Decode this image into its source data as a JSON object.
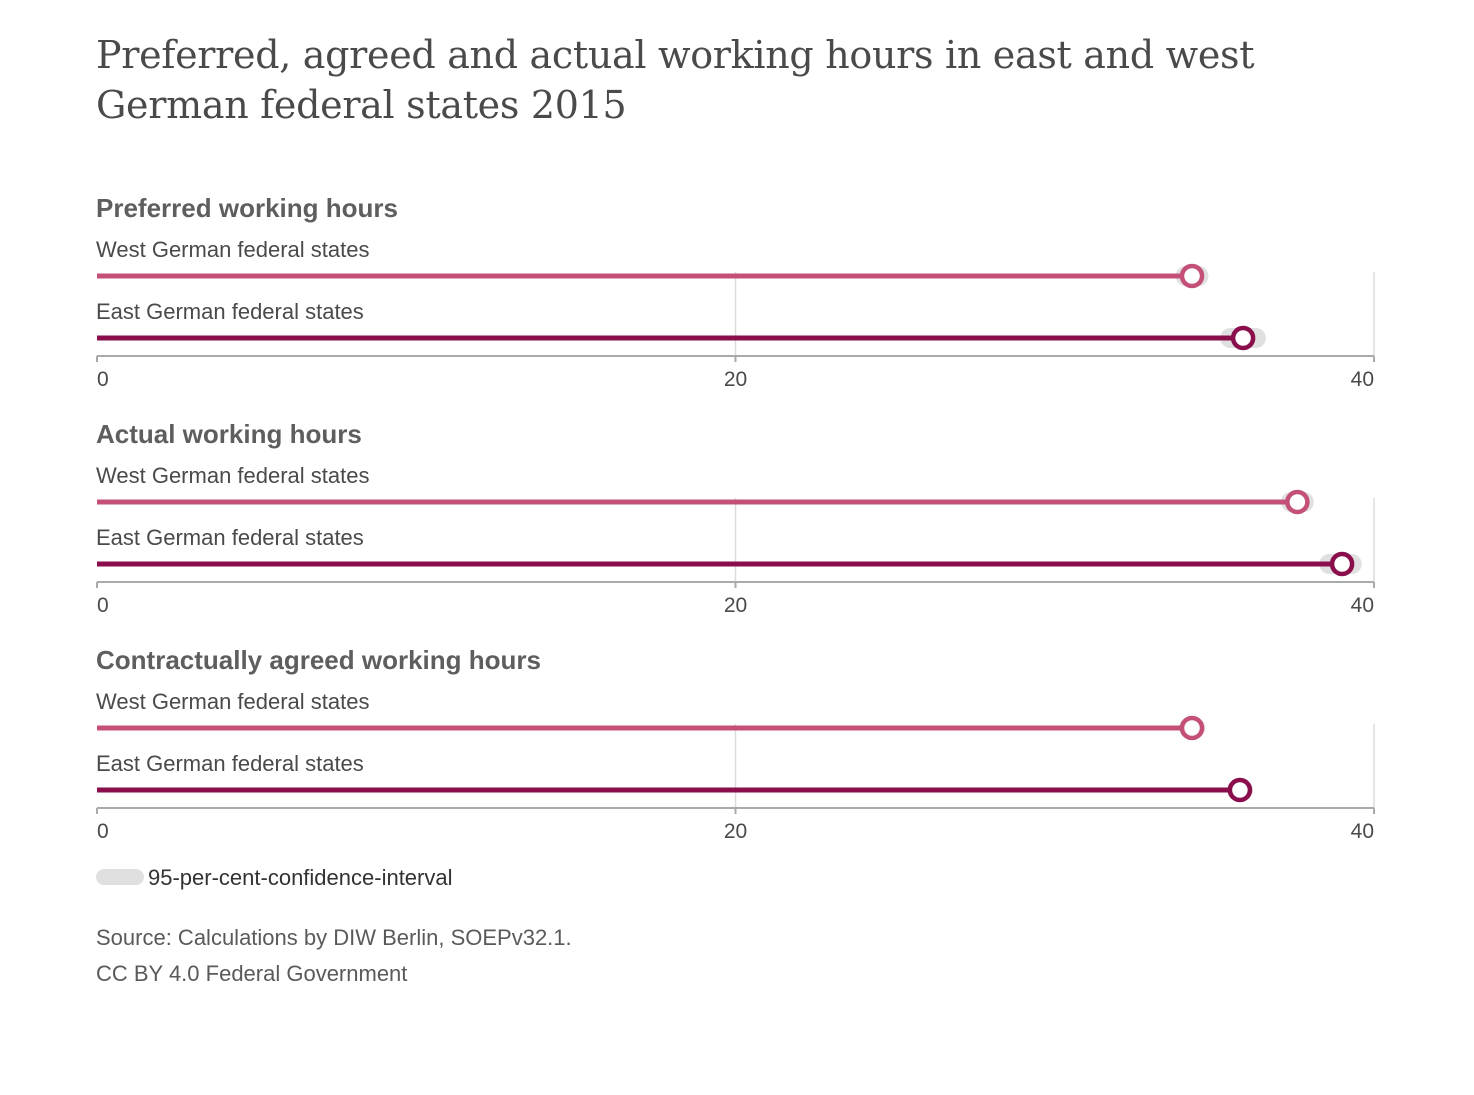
{
  "title": "Preferred, agreed and actual working hours in east and west German federal states 2015",
  "colors": {
    "west": "#c4507a",
    "east": "#8a0e4b",
    "ci": "#e0e0e0",
    "grid": "#dcdcdc",
    "axis": "#aaaaaa"
  },
  "chart_data": [
    {
      "type": "bar",
      "title": "Preferred working hours",
      "xlim": [
        0,
        40
      ],
      "ticks": [
        "0",
        "20",
        "40"
      ],
      "series": [
        {
          "name": "West German federal states",
          "value": 34.3,
          "ci": [
            34.1,
            34.5
          ]
        },
        {
          "name": "East German federal states",
          "value": 35.9,
          "ci": [
            35.5,
            36.3
          ]
        }
      ]
    },
    {
      "type": "bar",
      "title": "Actual working hours",
      "xlim": [
        0,
        40
      ],
      "ticks": [
        "0",
        "20",
        "40"
      ],
      "series": [
        {
          "name": "West German federal states",
          "value": 37.6,
          "ci": [
            37.4,
            37.8
          ]
        },
        {
          "name": "East German federal states",
          "value": 39.0,
          "ci": [
            38.6,
            39.3
          ]
        }
      ]
    },
    {
      "type": "bar",
      "title": "Contractually agreed working hours",
      "xlim": [
        0,
        40
      ],
      "ticks": [
        "0",
        "20",
        "40"
      ],
      "series": [
        {
          "name": "West German federal states",
          "value": 34.3,
          "ci": [
            34.2,
            34.4
          ]
        },
        {
          "name": "East German federal states",
          "value": 35.8,
          "ci": [
            35.7,
            35.9
          ]
        }
      ]
    }
  ],
  "legend": {
    "label": "95-per-cent-confidence-interval"
  },
  "source": {
    "line1": "Source: Calculations by DIW Berlin, SOEPv32.1.",
    "line2": "CC BY 4.0 Federal Government"
  }
}
